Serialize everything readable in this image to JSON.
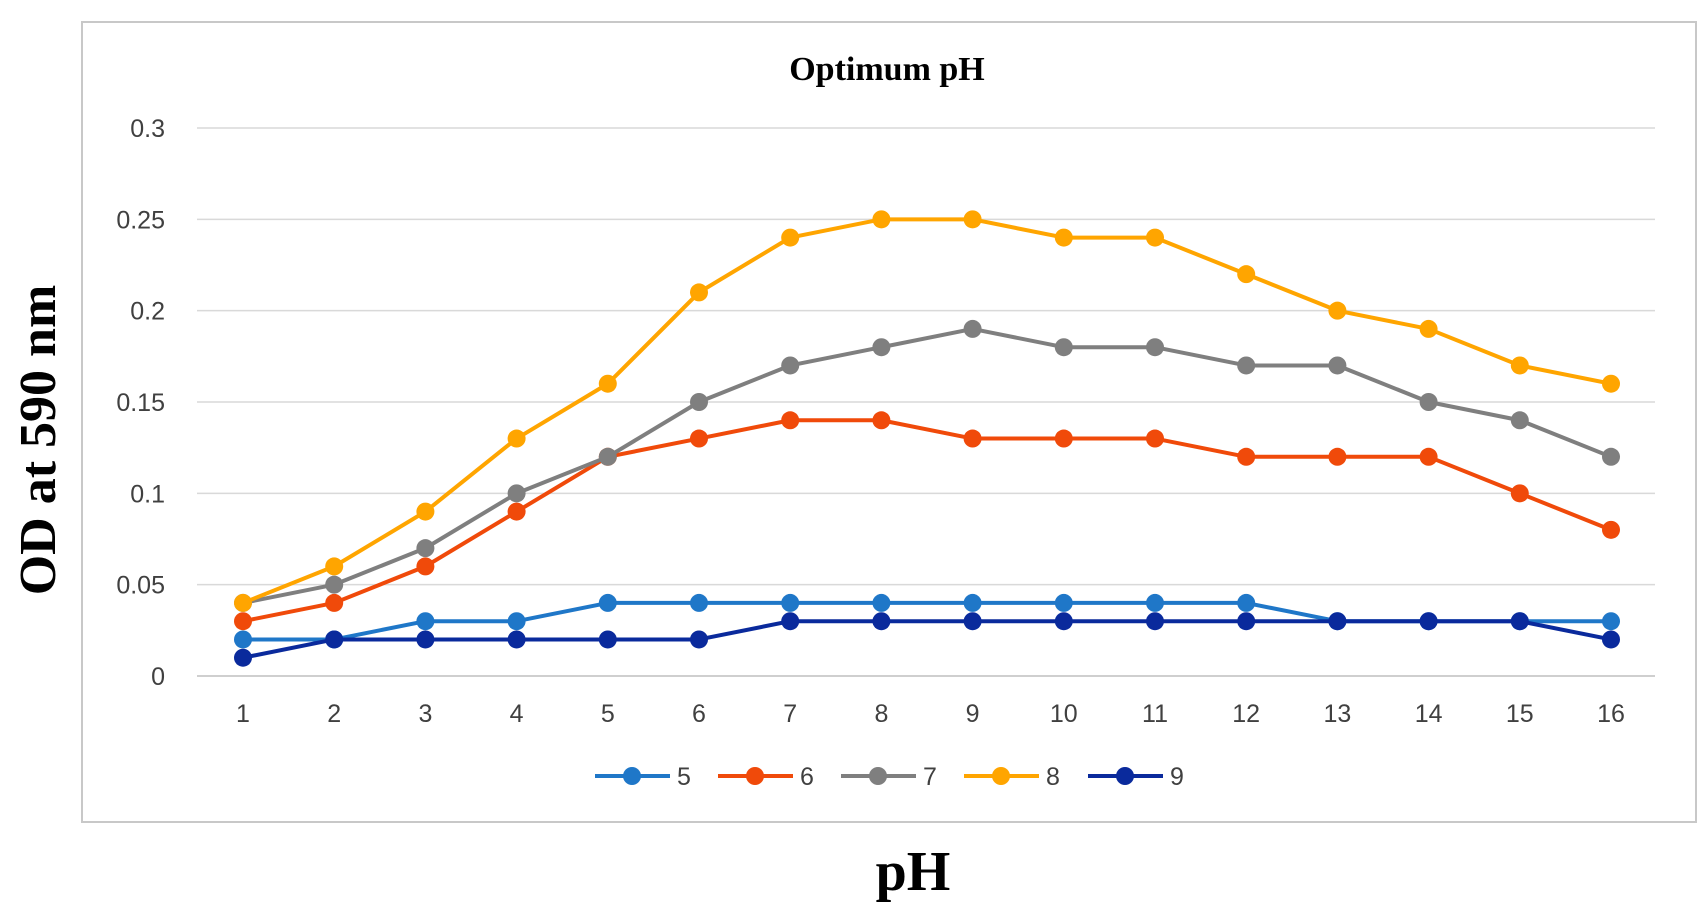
{
  "chart_data": {
    "type": "line",
    "title": "Optimum pH",
    "xlabel": "pH",
    "ylabel": "OD at 590 nm",
    "categories": [
      "1",
      "2",
      "3",
      "4",
      "5",
      "6",
      "7",
      "8",
      "9",
      "10",
      "11",
      "12",
      "13",
      "14",
      "15",
      "16"
    ],
    "ylim": [
      0,
      0.3
    ],
    "yticks": [
      "0",
      "0.05",
      "0.1",
      "0.15",
      "0.2",
      "0.25",
      "0.3"
    ],
    "ytick_values": [
      0,
      0.05,
      0.1,
      0.15,
      0.2,
      0.25,
      0.3
    ],
    "grid": true,
    "legend_position": "bottom",
    "series": [
      {
        "name": "5",
        "color": "#1f77c8",
        "values": [
          0.02,
          0.02,
          0.03,
          0.03,
          0.04,
          0.04,
          0.04,
          0.04,
          0.04,
          0.04,
          0.04,
          0.04,
          0.03,
          0.03,
          0.03,
          0.03
        ]
      },
      {
        "name": "6",
        "color": "#f04a0a",
        "values": [
          0.03,
          0.04,
          0.06,
          0.09,
          0.12,
          0.13,
          0.14,
          0.14,
          0.13,
          0.13,
          0.13,
          0.12,
          0.12,
          0.12,
          0.1,
          0.08
        ]
      },
      {
        "name": "7",
        "color": "#7f7f7f",
        "values": [
          0.04,
          0.05,
          0.07,
          0.1,
          0.12,
          0.15,
          0.17,
          0.18,
          0.19,
          0.18,
          0.18,
          0.17,
          0.17,
          0.15,
          0.14,
          0.12
        ]
      },
      {
        "name": "8",
        "color": "#ffa500",
        "values": [
          0.04,
          0.06,
          0.09,
          0.13,
          0.16,
          0.21,
          0.24,
          0.25,
          0.25,
          0.24,
          0.24,
          0.22,
          0.2,
          0.19,
          0.17,
          0.16
        ]
      },
      {
        "name": "9",
        "color": "#0a2a9c",
        "values": [
          0.01,
          0.02,
          0.02,
          0.02,
          0.02,
          0.02,
          0.03,
          0.03,
          0.03,
          0.03,
          0.03,
          0.03,
          0.03,
          0.03,
          0.03,
          0.02
        ]
      }
    ]
  }
}
